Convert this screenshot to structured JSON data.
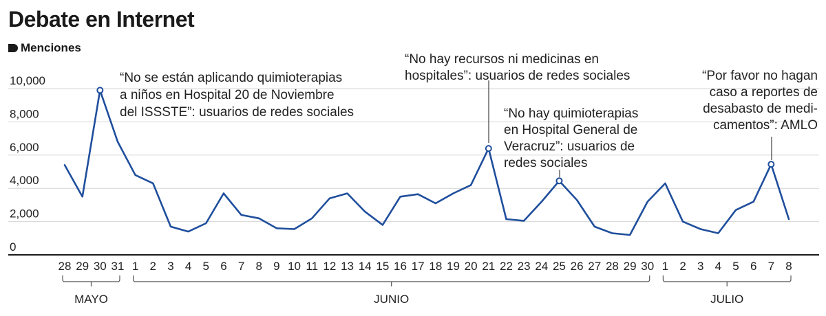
{
  "chart_data": {
    "type": "line",
    "title": "Debate en Internet",
    "ylabel": "Menciones",
    "xlabel": "",
    "ylim": [
      0,
      10000
    ],
    "yticks": [
      "0",
      "2,000",
      "4,000",
      "6,000",
      "8,000",
      "10,000"
    ],
    "ytick_values": [
      0,
      2000,
      4000,
      6000,
      8000,
      10000
    ],
    "categories": [
      "28",
      "29",
      "30",
      "31",
      "1",
      "2",
      "3",
      "4",
      "5",
      "6",
      "7",
      "8",
      "9",
      "10",
      "11",
      "12",
      "13",
      "14",
      "15",
      "16",
      "17",
      "18",
      "19",
      "20",
      "21",
      "22",
      "23",
      "24",
      "25",
      "26",
      "27",
      "28",
      "29",
      "30",
      "1",
      "2",
      "3",
      "4",
      "5",
      "6",
      "7",
      "8"
    ],
    "values": [
      5400,
      3500,
      9900,
      6800,
      4800,
      4300,
      1700,
      1400,
      1900,
      3700,
      2400,
      2200,
      1600,
      1550,
      2200,
      3400,
      3700,
      2600,
      1800,
      3500,
      3650,
      3100,
      3700,
      4200,
      6400,
      2150,
      2050,
      3200,
      4450,
      3300,
      1700,
      1300,
      1200,
      3200,
      4300,
      2000,
      1550,
      1300,
      2700,
      3200,
      5450,
      2150
    ],
    "months": [
      {
        "name": "MAYO",
        "start": 0,
        "end": 3
      },
      {
        "name": "JUNIO",
        "start": 4,
        "end": 33
      },
      {
        "name": "JULIO",
        "start": 34,
        "end": 41
      }
    ],
    "annotations": [
      {
        "index": 2,
        "lines": [
          "“No se están aplicando quimioterapias",
          "a niños en Hospital 20 de Noviembre",
          "del ISSSTE”: usuarios de redes sociales"
        ]
      },
      {
        "index": 24,
        "lines": [
          "“No hay recursos ni medicinas en",
          "hospitales”: usuarios de redes sociales"
        ]
      },
      {
        "index": 28,
        "lines": [
          "“No hay quimioterapias",
          "en Hospital General de",
          "Veracruz”: usuarios de",
          "redes sociales"
        ]
      },
      {
        "index": 40,
        "lines": [
          "“Por favor no hagan",
          "caso a reportes de",
          "desabasto de medi-",
          "camentos”: AMLO"
        ]
      }
    ],
    "line_color": "#1f4e9c",
    "grid": true
  }
}
